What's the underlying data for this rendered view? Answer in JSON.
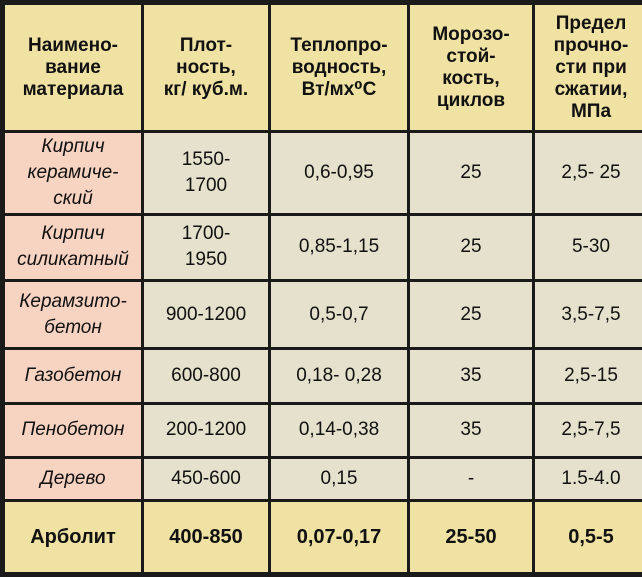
{
  "table": {
    "headers": [
      {
        "lines": [
          "Наимено-",
          "вание",
          "материала"
        ]
      },
      {
        "lines": [
          "Плот-",
          "ность,",
          "кг/ куб.м."
        ]
      },
      {
        "lines": [
          "Теплопро-",
          "водность,",
          "Вт/мx⁰С"
        ]
      },
      {
        "lines": [
          "Морозо-",
          "стой-",
          "кость,",
          "циклов"
        ]
      },
      {
        "lines": [
          "Предел",
          "прочно-",
          "сти при",
          "сжатии,",
          "МПа"
        ]
      }
    ],
    "rows": [
      {
        "name_lines": [
          "Кирпич",
          "керамиче-",
          "ский"
        ],
        "density_lines": [
          "1550-",
          "1700"
        ],
        "conductivity": "0,6-0,95",
        "frost": "25",
        "strength": "2,5- 25"
      },
      {
        "name_lines": [
          "Кирпич",
          "силикатный"
        ],
        "density_lines": [
          "1700-",
          "1950"
        ],
        "conductivity": "0,85-1,15",
        "frost": "25",
        "strength": "5-30"
      },
      {
        "name_lines": [
          "Керамзито-",
          "бетон"
        ],
        "density_lines": [
          "900-1200"
        ],
        "conductivity": "0,5-0,7",
        "frost": "25",
        "strength": "3,5-7,5"
      },
      {
        "name_lines": [
          "Газобетон"
        ],
        "density_lines": [
          "600-800"
        ],
        "conductivity": "0,18- 0,28",
        "frost": "35",
        "strength": "2,5-15"
      },
      {
        "name_lines": [
          "Пенобетон"
        ],
        "density_lines": [
          "200-1200"
        ],
        "conductivity": "0,14-0,38",
        "frost": "35",
        "strength": "2,5-7,5"
      },
      {
        "name_lines": [
          "Дерево"
        ],
        "density_lines": [
          "450-600"
        ],
        "conductivity": "0,15",
        "frost": "-",
        "strength": "1.5-4.0"
      },
      {
        "name_lines": [
          "Арболит"
        ],
        "density_lines": [
          "400-850"
        ],
        "conductivity": "0,07-0,17",
        "frost": "25-50",
        "strength": "0,5-5"
      }
    ]
  },
  "colors": {
    "border": "#1a1a1a",
    "header_bg": "#efe2a3",
    "name_bg": "#f7d3c2",
    "cell_bg": "#e5e1cc",
    "highlight_bg": "#efe2a3"
  }
}
